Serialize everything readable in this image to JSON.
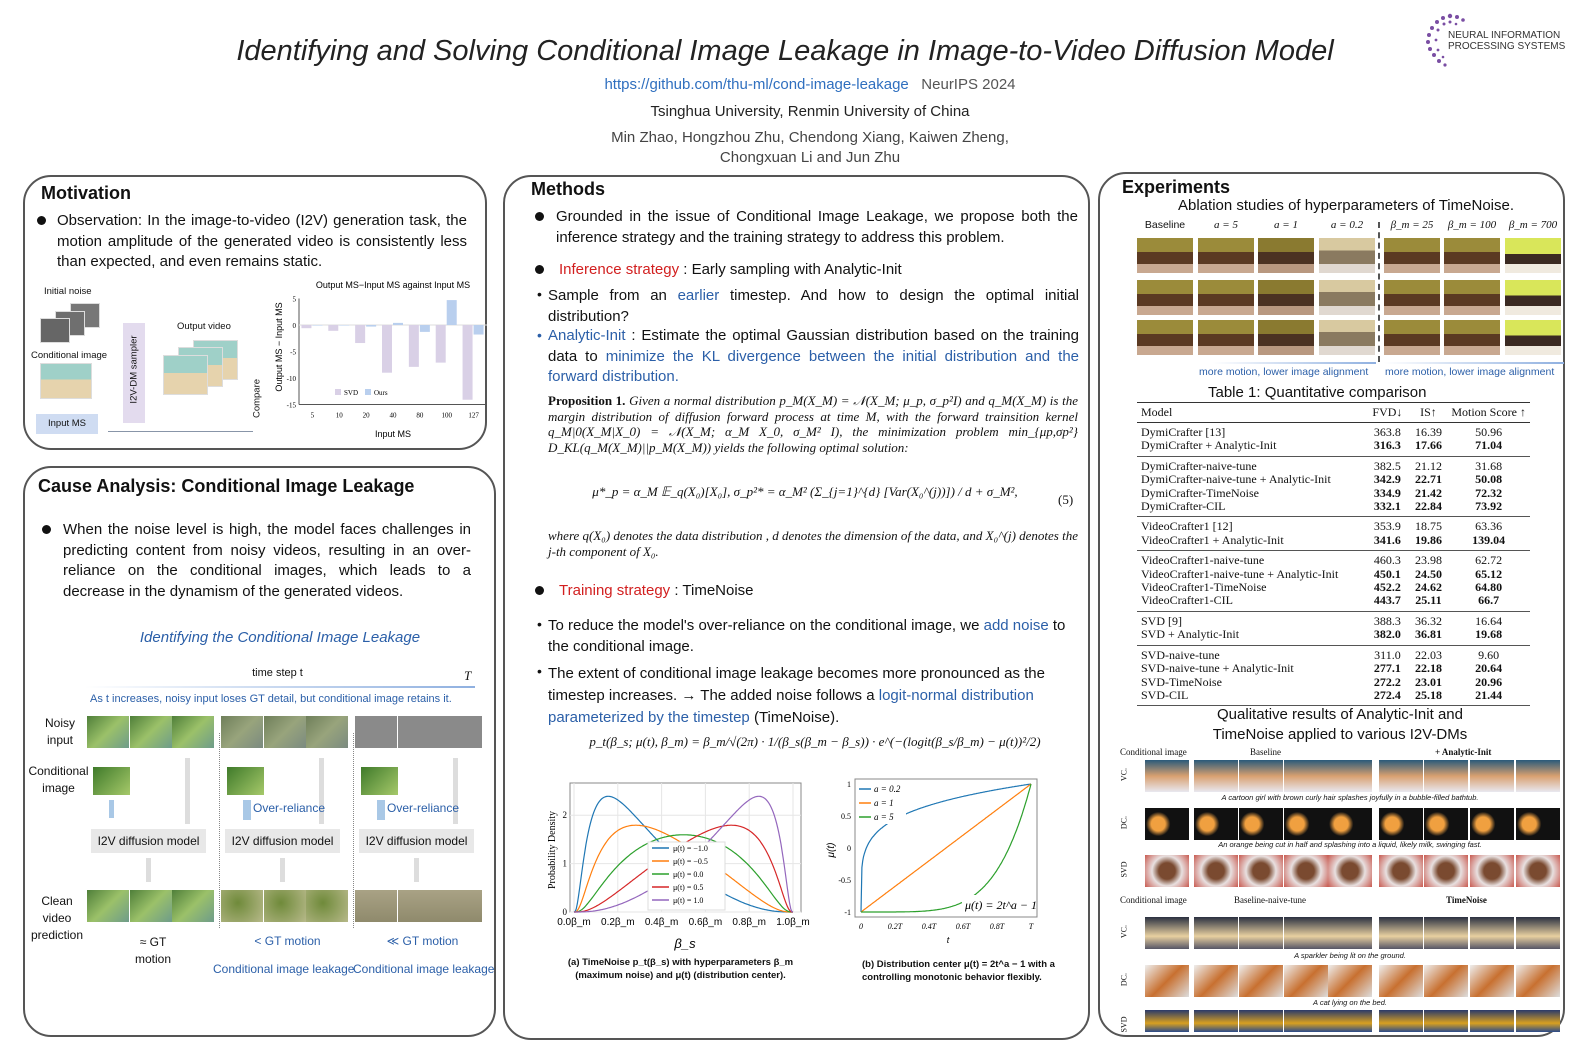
{
  "header": {
    "title": "Identifying and Solving Conditional Image Leakage in Image-to-Video Diffusion Model",
    "link": "https://github.com/thu-ml/cond-image-leakage",
    "venue": "NeurIPS 2024",
    "affiliations": "Tsinghua University, Renmin University of China",
    "authors_line1": "Min Zhao, Hongzhou Zhu, Chendong Xiang, Kaiwen Zheng,",
    "authors_line2": "Chongxuan Li and Jun Zhu",
    "logo_text_1": "NEURAL INFORMATION",
    "logo_text_2": "PROCESSING SYSTEMS",
    "logo_color": "#7a4ea3"
  },
  "motivation": {
    "title": "Motivation",
    "bullet": "Observation: In the image-to-video (I2V) generation task, the motion amplitude of the generated video is consistently less than expected, and even remains static.",
    "diagram": {
      "initial_noise": "Initial noise",
      "conditional_image": "Conditional image",
      "input_ms": "Input MS",
      "sampler": "I2V-DM sampler",
      "output_video": "Output video",
      "compare": "Compare"
    }
  },
  "cause": {
    "title": "Cause Analysis: Conditional Image Leakage",
    "bullet": "When the noise level is high, the model faces challenges in predicting content from noisy videos, resulting in an over-reliance on the conditional images, which leads to a decrease in the dynamism of the generated videos.",
    "figure_title": "Identifying the Conditional Image Leakage",
    "time_label": "time step t",
    "time_end": "T",
    "time_note": "As t increases, noisy input loses GT detail, but conditional image retains it.",
    "row_noisy": "Noisy input",
    "row_cond": "Conditional image",
    "row_clean": "Clean video prediction",
    "model_label": "I2V diffusion model",
    "over_reliance": "Over-reliance",
    "outcome_1": "≈ GT motion",
    "outcome_2": "< GT motion",
    "outcome_3": "≪ GT motion",
    "leakage": "Conditional image leakage"
  },
  "methods": {
    "title": "Methods",
    "bullet_intro": "Grounded in the issue of Conditional Image Leakage, we propose both the inference strategy and the training strategy to address this problem.",
    "inference_head": "Inference strategy",
    "inference_rest": " : Early sampling with Analytic-Init",
    "sample_a": "Sample from an ",
    "sample_b": "earlier",
    "sample_c": " timestep. And how to design the optimal initial distribution?",
    "ai_a": "Analytic-Init",
    "ai_b": " : Estimate the optimal Gaussian distribution based on the training data to ",
    "ai_c": "minimize the KL divergence between the initial distribution and the forward distribution.",
    "prop_label": "Proposition 1.",
    "prop_text": "Given a normal distribution p_M(X_M) = 𝒩(X_M; μ_p, σ_p²I) and q_M(X_M) is the margin distribution of diffusion forward process at time M, with the forward trainsition kernel q_M|0(X_M|X_0) = 𝒩(X_M; α_M X_0, σ_M² I), the minimization problem min_{μp,σp²} D_KL(q_M(X_M)||p_M(X_M)) yields the following optimal solution:",
    "equation": "μ*_p = α_M 𝔼_q(X₀)[X₀],    σ_p²* = α_M² (Σ_{j=1}^{d} [Var(X₀^(j))]) / d + σ_M²,",
    "equation_number": "(5)",
    "where_text": "where q(X₀) denotes the data distribution , d denotes the dimension of the data, and X₀^(j) denotes the j-th component of X₀.",
    "training_head": "Training strategy",
    "training_rest": " : TimeNoise",
    "tn1_a": "To reduce the model's over-reliance on the conditional image, we ",
    "tn1_b": "add noise",
    "tn1_c": " to the conditional image.",
    "tn2_a": "The extent of conditional image leakage becomes more pronounced as the timestep increases. → The added noise follows a ",
    "tn2_b": "logit-normal distribution parameterized by the timestep",
    "tn2_c": " (TimeNoise).",
    "timenoise_formula": "p_t(β_s; μ(t), β_m) = β_m/√(2π) · 1/(β_s(β_m − β_s)) · e^(−(logit(β_s/β_m) − μ(t))²/2)",
    "caption_a_1": "(a) TimeNoise p_t(β_s) with hyperparameters β_m",
    "caption_a_2": "(maximum noise) and μ(t) (distribution center).",
    "caption_b_1": "(b) Distribution center μ(t) = 2t^a − 1 with a",
    "caption_b_2": "controlling monotonic behavior flexibly."
  },
  "experiments": {
    "title": "Experiments",
    "ablation_title": "Ablation studies of hyperparameters of TimeNoise.",
    "ablation_columns": [
      "Baseline",
      "a = 5",
      "a = 1",
      "a = 0.2",
      "β_m = 25",
      "β_m = 100",
      "β_m = 700"
    ],
    "ablation_note_1": "more motion, lower image alignment",
    "ablation_note_2": "more motion, lower image alignment",
    "table_caption": "Table 1: Quantitative comparison",
    "table_headers": [
      "Model",
      "FVD↓",
      "IS↑",
      "Motion Score ↑"
    ],
    "table_groups": [
      [
        [
          "DymiCrafter [13]",
          "363.8",
          "16.39",
          "50.96",
          false
        ],
        [
          "DymiCrafter + Analytic-Init",
          "316.3",
          "17.66",
          "71.04",
          true
        ]
      ],
      [
        [
          "DymiCrafter-naive-tune",
          "382.5",
          "21.12",
          "31.68",
          false
        ],
        [
          "DymiCrafter-naive-tune + Analytic-Init",
          "342.9",
          "22.71",
          "50.08",
          true
        ],
        [
          "DymiCrafter-TimeNoise",
          "334.9",
          "21.42",
          "72.32",
          true
        ],
        [
          "DymiCrafter-CIL",
          "332.1",
          "22.84",
          "73.92",
          true
        ]
      ],
      [
        [
          "VideoCrafter1 [12]",
          "353.9",
          "18.75",
          "63.36",
          false
        ],
        [
          "VideoCrafter1 + Analytic-Init",
          "341.6",
          "19.86",
          "139.04",
          true
        ]
      ],
      [
        [
          "VideoCrafter1-naive-tune",
          "460.3",
          "23.98",
          "62.72",
          false
        ],
        [
          "VideoCrafter1-naive-tune + Analytic-Init",
          "450.1",
          "24.50",
          "65.12",
          true
        ],
        [
          "VideoCrafter1-TimeNoise",
          "452.2",
          "24.62",
          "64.80",
          true
        ],
        [
          "VideoCrafter1-CIL",
          "443.7",
          "25.11",
          "66.7",
          true
        ]
      ],
      [
        [
          "SVD [9]",
          "388.3",
          "36.32",
          "16.64",
          false
        ],
        [
          "SVD + Analytic-Init",
          "382.0",
          "36.81",
          "19.68",
          true
        ]
      ],
      [
        [
          "SVD-naive-tune",
          "311.0",
          "22.03",
          "9.60",
          false
        ],
        [
          "SVD-naive-tune + Analytic-Init",
          "277.1",
          "22.18",
          "20.64",
          true
        ],
        [
          "SVD-TimeNoise",
          "272.2",
          "23.01",
          "20.96",
          true
        ],
        [
          "SVD-CIL",
          "272.4",
          "25.18",
          "21.44",
          true
        ]
      ]
    ],
    "qual_title_1": "Qualitative results of Analytic-Init  and",
    "qual_title_2": "TimeNoise applied to various I2V-DMs",
    "qual_head_cond": "Conditional image",
    "qual_head_baseline": "Baseline",
    "qual_head_ai": "+ Analytic-Init",
    "qual_head_baseline2": "Baseline-naive-tune",
    "qual_head_tn": "TimeNoise",
    "row_labels": [
      "VC.",
      "DC.",
      "SVD",
      "VC.",
      "DC.",
      "SVD"
    ],
    "captions": [
      "A cartoon girl with brown curly hair splashes joyfully in a bubble-filled bathtub.",
      "An orange being cut in half and splashing into a liquid, likely milk, swinging fast.",
      "A sparkler being lit on the ground.",
      "A cat lying on the bed."
    ]
  },
  "colors": {
    "accent_blue": "#2b5fa8",
    "accent_red": "#d21f1f",
    "svd_bar": "#d9d0e6",
    "ours_bar": "#b9cfee"
  },
  "chart_data": [
    {
      "type": "bar",
      "title": "Output MS−Input MS against Input MS",
      "xlabel": "Input MS",
      "ylabel": "Output MS − Input MS",
      "categories": [
        "5",
        "10",
        "20",
        "40",
        "80",
        "100",
        "127"
      ],
      "ylim": [
        -15,
        5
      ],
      "yticks": [
        "5",
        "0",
        "-5",
        "-10",
        "-15"
      ],
      "legend": "bottom-left",
      "series": [
        {
          "name": "SVD",
          "values": [
            -0.6,
            -1.1,
            -3.4,
            -9.0,
            -7.9,
            -7.1,
            -14.1
          ],
          "color": "#d9d0e6"
        },
        {
          "name": "Ours",
          "values": [
            -0.1,
            0.0,
            -0.3,
            0.4,
            -1.3,
            4.7,
            -1.8
          ],
          "color": "#b9cfee"
        }
      ]
    },
    {
      "type": "line",
      "xlabel": "β_s",
      "ylabel": "Probability Density",
      "xticks": [
        "0.0β_m",
        "0.2β_m",
        "0.4β_m",
        "0.6β_m",
        "0.8β_m",
        "1.0β_m"
      ],
      "yticks": [
        "0",
        "1",
        "2"
      ],
      "xlim": [
        0,
        1
      ],
      "ylim": [
        0,
        2.5
      ],
      "grid": true,
      "legend": "center",
      "function": "logit-normal density",
      "series": [
        {
          "name": "μ(t) = −1.0",
          "mu": -1.0,
          "color": "#1f77b4"
        },
        {
          "name": "μ(t) = −0.5",
          "mu": -0.5,
          "color": "#ff7f0e"
        },
        {
          "name": "μ(t) = 0.0",
          "mu": 0.0,
          "color": "#2ca02c"
        },
        {
          "name": "μ(t) = 0.5",
          "mu": 0.5,
          "color": "#d62728"
        },
        {
          "name": "μ(t) = 1.0",
          "mu": 1.0,
          "color": "#9467bd"
        }
      ]
    },
    {
      "type": "line",
      "xlabel": "t",
      "ylabel": "μ(t)",
      "annotation": "μ(t) = 2t^a − 1",
      "xticks": [
        "0",
        "0.2T",
        "0.4T",
        "0.6T",
        "0.8T",
        "T"
      ],
      "yticks": [
        "1",
        "0.5",
        "0",
        "-0.5",
        "-1"
      ],
      "xlim": [
        0,
        1
      ],
      "ylim": [
        -1,
        1
      ],
      "legend": "top-left",
      "series": [
        {
          "name": "a = 0.2",
          "a": 0.2,
          "color": "#1f77b4"
        },
        {
          "name": "a = 1",
          "a": 1,
          "color": "#ff7f0e"
        },
        {
          "name": "a = 5",
          "a": 5,
          "color": "#2ca02c"
        }
      ]
    }
  ]
}
